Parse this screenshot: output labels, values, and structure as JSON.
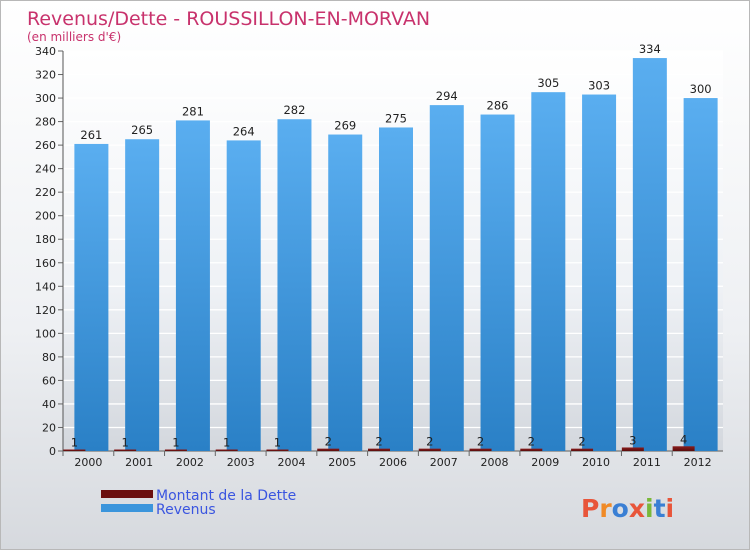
{
  "chart_data": {
    "type": "bar",
    "title": "Revenus/Dette - ROUSSILLON-EN-MORVAN",
    "subtitle": "(en milliers d'€)",
    "categories": [
      "2000",
      "2001",
      "2002",
      "2003",
      "2004",
      "2005",
      "2006",
      "2007",
      "2008",
      "2009",
      "2010",
      "2011",
      "2012"
    ],
    "series": [
      {
        "name": "Montant de la Dette",
        "color": "#6b0f0f",
        "values": [
          1,
          1,
          1,
          1,
          1,
          2,
          2,
          2,
          2,
          2,
          2,
          3,
          4
        ]
      },
      {
        "name": "Revenus",
        "color": "#3b95dc",
        "values": [
          261,
          265,
          281,
          264,
          282,
          269,
          275,
          294,
          286,
          305,
          303,
          334,
          300
        ]
      }
    ],
    "ylim": [
      0,
      340
    ],
    "ytick_step": 20,
    "grid": true,
    "legend_position": "bottom-left"
  },
  "logo": {
    "text": "Proxiti",
    "colors": [
      "#e8553a",
      "#f08a26",
      "#3a7fd4",
      "#e8553a",
      "#7ab83a",
      "#3a7fd4",
      "#e8553a"
    ]
  }
}
